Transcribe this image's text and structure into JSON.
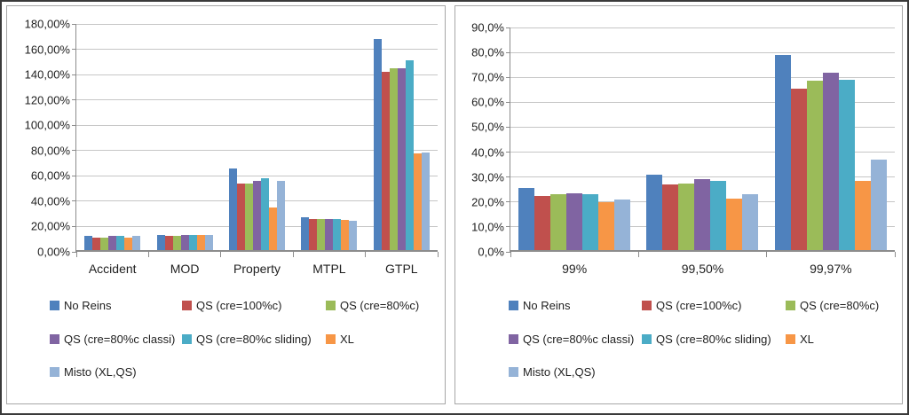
{
  "window": {
    "background": "#ffffff",
    "outer_border_color": "#3a3a3a",
    "panel_border_color": "#a6a6a6",
    "gridline_color": "#c6c6c6",
    "axis_color": "#8c8c8c",
    "text_color": "#1f1f1f"
  },
  "chart_data": [
    {
      "type": "bar",
      "title": "",
      "xlabel": "",
      "ylabel": "",
      "grid": true,
      "legend_position": "bottom",
      "categories": [
        "Accident",
        "MOD",
        "Property",
        "MTPL",
        "GTPL"
      ],
      "y_axis": {
        "min": 0,
        "max": 180,
        "step": 20,
        "unit": "%",
        "ticks": [
          "180,00%",
          "160,00%",
          "140,00%",
          "120,00%",
          "100,00%",
          "80,00%",
          "60,00%",
          "40,00%",
          "20,00%",
          "0,00%"
        ]
      },
      "series": [
        {
          "name": "No Reins",
          "color": "#4F81BD",
          "values": [
            12.5,
            13.5,
            66,
            27,
            168
          ]
        },
        {
          "name": "QS (cre=100%c)",
          "color": "#C0504D",
          "values": [
            11.5,
            12.5,
            54,
            26,
            142.5
          ]
        },
        {
          "name": "QS (cre=80%c)",
          "color": "#9BBB59",
          "values": [
            11.5,
            12.5,
            54,
            26,
            145
          ]
        },
        {
          "name": "QS (cre=80%c classi)",
          "color": "#8064A2",
          "values": [
            12.5,
            13.5,
            56,
            26,
            145
          ]
        },
        {
          "name": "QS (cre=80%c sliding)",
          "color": "#4BACC6",
          "values": [
            12.5,
            13.5,
            58,
            26,
            151.5
          ]
        },
        {
          "name": "XL",
          "color": "#F79646",
          "values": [
            11.5,
            13.5,
            35,
            25,
            78
          ]
        },
        {
          "name": "Misto (XL,QS)",
          "color": "#95B3D7",
          "values": [
            12.5,
            13.5,
            56,
            24.5,
            78.5
          ]
        }
      ]
    },
    {
      "type": "bar",
      "title": "",
      "xlabel": "",
      "ylabel": "",
      "grid": true,
      "legend_position": "bottom",
      "categories": [
        "99%",
        "99,50%",
        "99,97%"
      ],
      "y_axis": {
        "min": 0,
        "max": 90,
        "step": 10,
        "unit": "%",
        "ticks": [
          "90,0%",
          "80,0%",
          "70,0%",
          "60,0%",
          "50,0%",
          "40,0%",
          "30,0%",
          "20,0%",
          "10,0%",
          "0,0%"
        ]
      },
      "series": [
        {
          "name": "No Reins",
          "color": "#4F81BD",
          "values": [
            25.5,
            31,
            79
          ]
        },
        {
          "name": "QS (cre=100%c)",
          "color": "#C0504D",
          "values": [
            22.5,
            27,
            65.5
          ]
        },
        {
          "name": "QS (cre=80%c)",
          "color": "#9BBB59",
          "values": [
            23,
            27.5,
            68.5
          ]
        },
        {
          "name": "QS (cre=80%c classi)",
          "color": "#8064A2",
          "values": [
            23.5,
            29,
            72
          ]
        },
        {
          "name": "QS (cre=80%c sliding)",
          "color": "#4BACC6",
          "values": [
            23,
            28.5,
            69
          ]
        },
        {
          "name": "XL",
          "color": "#F79646",
          "values": [
            20,
            21.5,
            28.5
          ]
        },
        {
          "name": "Misto (XL,QS)",
          "color": "#95B3D7",
          "values": [
            21,
            23,
            37
          ]
        }
      ]
    }
  ]
}
